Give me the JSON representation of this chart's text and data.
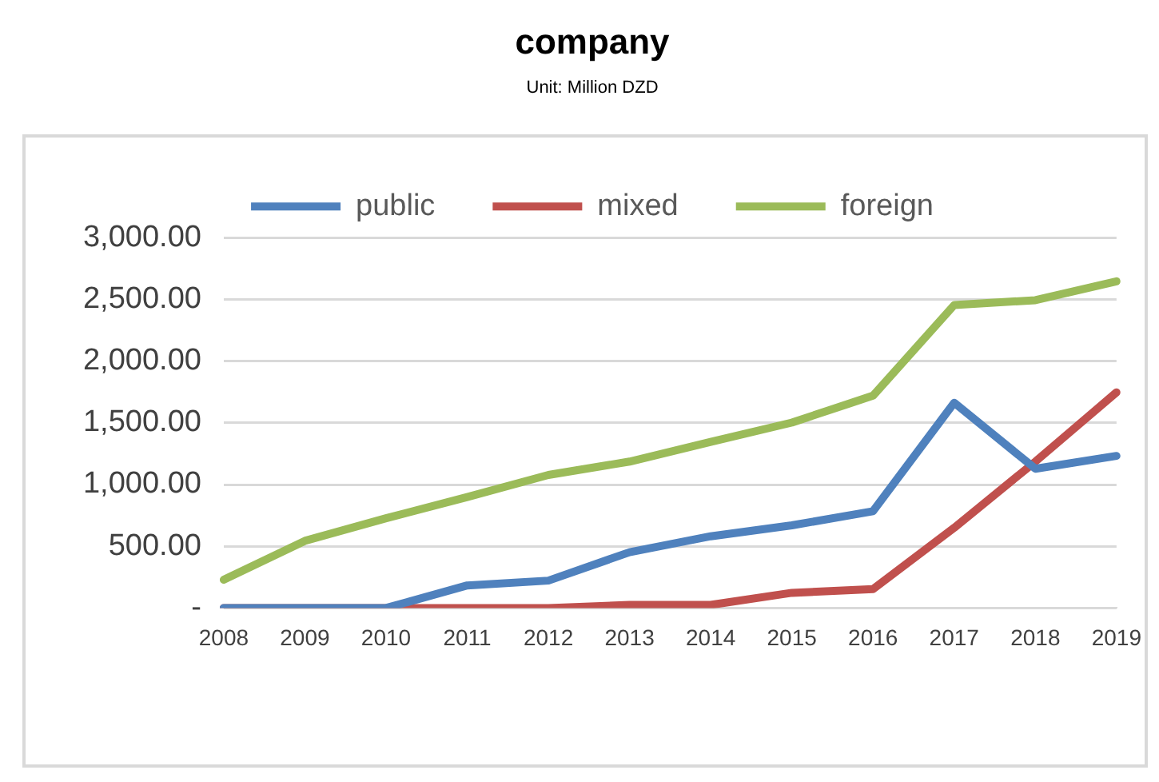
{
  "chart_data": {
    "type": "line",
    "title": "company",
    "subtitle": "Unit: Million DZD",
    "categories": [
      "2008",
      "2009",
      "2010",
      "2011",
      "2012",
      "2013",
      "2014",
      "2015",
      "2016",
      "2017",
      "2018",
      "2019"
    ],
    "series": [
      {
        "name": "public",
        "color": "#4f81bd",
        "values": [
          0,
          0,
          0,
          183,
          222,
          452,
          581,
          670,
          784,
          1663,
          1128,
          1232
        ]
      },
      {
        "name": "mixed",
        "color": "#c0504d",
        "values": [
          0,
          0,
          0,
          0,
          0,
          25,
          25,
          123,
          153,
          650,
          1186,
          1747
        ]
      },
      {
        "name": "foreign",
        "color": "#9bbb59",
        "values": [
          229,
          544,
          727,
          899,
          1078,
          1186,
          1346,
          1502,
          1720,
          2454,
          2493,
          2646
        ]
      }
    ],
    "ylim": [
      0,
      3000
    ],
    "yticks": [
      {
        "value": 0,
        "label": "-"
      },
      {
        "value": 500,
        "label": "500.00"
      },
      {
        "value": 1000,
        "label": "1,000.00"
      },
      {
        "value": 1500,
        "label": "1,500.00"
      },
      {
        "value": 2000,
        "label": "2,000.00"
      },
      {
        "value": 2500,
        "label": "2,500.00"
      },
      {
        "value": 3000,
        "label": "3,000.00"
      }
    ],
    "grid": "y",
    "legend": "top",
    "marker": "none",
    "line_style": "solid"
  }
}
